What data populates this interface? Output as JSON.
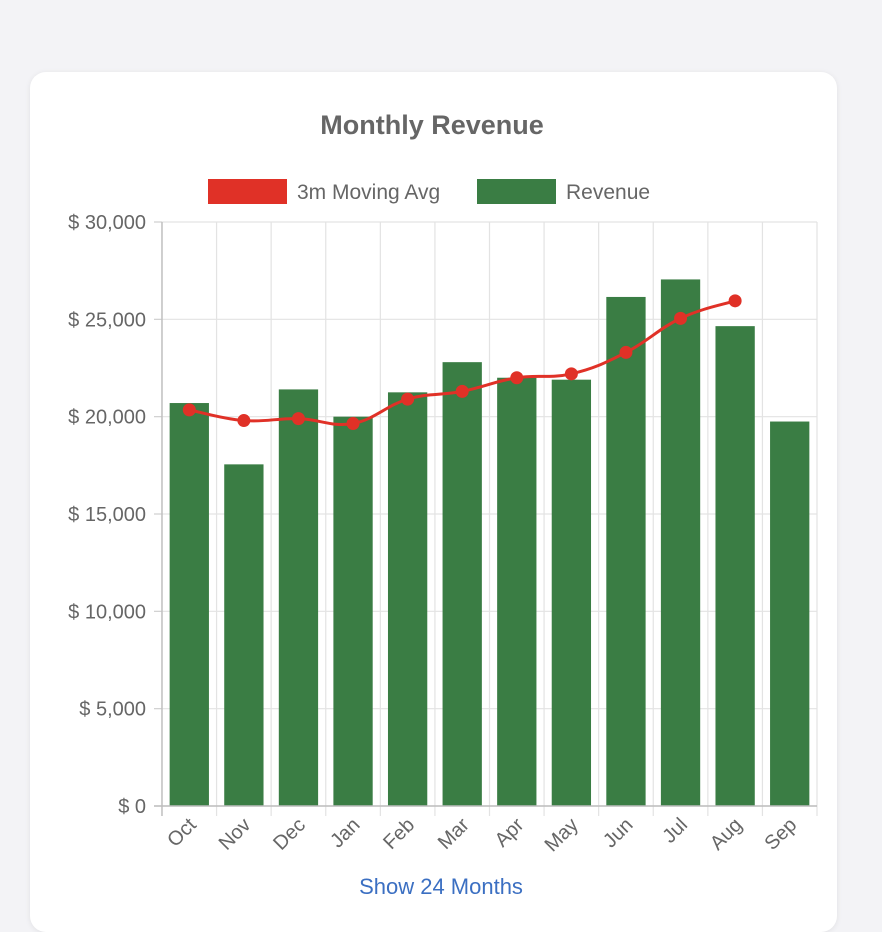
{
  "card": {
    "footer_link": "Show 24 Months"
  },
  "chart_data": {
    "type": "bar",
    "title": "Monthly Revenue",
    "categories": [
      "Oct",
      "Nov",
      "Dec",
      "Jan",
      "Feb",
      "Mar",
      "Apr",
      "May",
      "Jun",
      "Jul",
      "Aug",
      "Sep"
    ],
    "series": [
      {
        "name": "3m Moving Avg",
        "type": "line",
        "color": "#e03127",
        "values": [
          20350,
          19800,
          19900,
          19650,
          20900,
          21300,
          22000,
          22200,
          23300,
          25050,
          25950,
          null
        ]
      },
      {
        "name": "Revenue",
        "type": "bar",
        "color": "#3a7d44",
        "values": [
          20700,
          17550,
          21400,
          20000,
          21250,
          22800,
          22000,
          21900,
          26150,
          27050,
          24650,
          19750
        ]
      }
    ],
    "yticks": [
      "$ 0",
      "$ 5,000",
      "$ 10,000",
      "$ 15,000",
      "$ 20,000",
      "$ 25,000",
      "$ 30,000"
    ],
    "ylim": [
      0,
      30000
    ],
    "grid": true,
    "legend": "top"
  }
}
